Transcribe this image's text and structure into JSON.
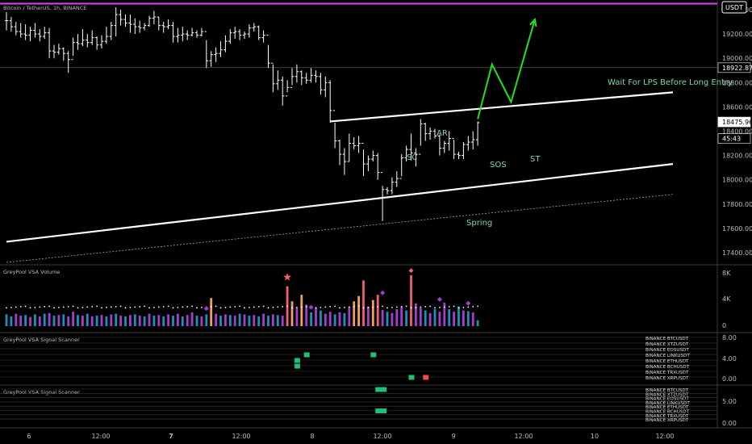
{
  "header": {
    "symbol_line": "Bitcoin / TetherUS, 1h, BINANCE",
    "currency_badge": "USDT"
  },
  "colors": {
    "background": "#000000",
    "candle": "#ffffff",
    "magenta_line": "#e040fb",
    "annotation_text": "#7ed9a8",
    "green_arrow": "#22e01a",
    "vol_blue": "#1f8fb8",
    "vol_purple": "#a23fd0",
    "vol_orange": "#f0a060",
    "vol_red": "#f06070",
    "scanner_green": "#1fbf75",
    "scanner_red": "#f04a5a"
  },
  "price_axis": {
    "ticks": [
      "19400.00",
      "19200.00",
      "19000.00",
      "18800.00",
      "18600.00",
      "18400.00",
      "18200.00",
      "18000.00",
      "17800.00",
      "17600.00",
      "17400.00"
    ],
    "label_price_1": "18922.87",
    "label_price_2": "18475.96",
    "label_countdown": "45:43"
  },
  "time_axis": {
    "ticks": [
      "6",
      "12:00",
      "7",
      "12:00",
      "8",
      "12:00",
      "9",
      "12:00",
      "10",
      "12:00"
    ]
  },
  "annotations": {
    "sc": "SC",
    "ar": "AR",
    "sos": "SOS",
    "st": "ST",
    "spring": "Spring",
    "note": "Wait For LPS Before Long Entry"
  },
  "panes": {
    "volume": {
      "title": "GreyPool VSA Volume",
      "ticks": [
        "8K",
        "4K",
        "0"
      ]
    },
    "scanner1": {
      "title": "GreyPool VSA Signal Scanner",
      "ticks": [
        "8.00",
        "4.00",
        "0.00"
      ],
      "symbols": [
        "BINANCE BTCUSDT",
        "BINANCE XTZUSDT",
        "BINANCE EOSUSDT",
        "BINANCE LINKUSDT",
        "BINANCE ETHUSDT",
        "BINANCE BCHUSDT",
        "BINANCE TRXUSDT",
        "BINANCE XRPUSDT"
      ]
    },
    "scanner2": {
      "title": "GreyPool VSA Signal Scanner",
      "ticks": [
        "5.00",
        "0.00"
      ],
      "symbols": [
        "BINANCE BTCUSDT",
        "BINANCE XTZUSDT",
        "BINANCE EOSUSDT",
        "BINANCE LINKUSDT",
        "BINANCE ETHUSDT",
        "BINANCE BCHUSDT",
        "BINANCE TRXUSDT",
        "BINANCE XRPUSDT"
      ]
    }
  },
  "chart_data": {
    "type": "candlestick",
    "title": "Bitcoin / TetherUS, 1h, BINANCE",
    "ylim": [
      17300,
      19480
    ],
    "x_ticks": [
      "6",
      "12:00",
      "7",
      "12:00",
      "8",
      "12:00",
      "9",
      "12:00",
      "10",
      "12:00"
    ],
    "candles_hlc": [
      [
        19380,
        19230,
        19310
      ],
      [
        19340,
        19220,
        19260
      ],
      [
        19300,
        19190,
        19220
      ],
      [
        19290,
        19170,
        19200
      ],
      [
        19280,
        19150,
        19190
      ],
      [
        19260,
        19140,
        19230
      ],
      [
        19290,
        19170,
        19200
      ],
      [
        19240,
        19140,
        19180
      ],
      [
        19260,
        19160,
        19210
      ],
      [
        19250,
        19000,
        19060
      ],
      [
        19110,
        19000,
        19050
      ],
      [
        19120,
        19030,
        19080
      ],
      [
        19090,
        18980,
        19040
      ],
      [
        19060,
        18880,
        18990
      ],
      [
        19170,
        19020,
        19130
      ],
      [
        19200,
        19070,
        19120
      ],
      [
        19240,
        19100,
        19150
      ],
      [
        19200,
        19090,
        19130
      ],
      [
        19230,
        19110,
        19170
      ],
      [
        19180,
        19070,
        19110
      ],
      [
        19190,
        19080,
        19140
      ],
      [
        19260,
        19120,
        19180
      ],
      [
        19300,
        19150,
        19270
      ],
      [
        19420,
        19180,
        19360
      ],
      [
        19400,
        19270,
        19320
      ],
      [
        19360,
        19260,
        19290
      ],
      [
        19360,
        19210,
        19280
      ],
      [
        19330,
        19200,
        19260
      ],
      [
        19310,
        19210,
        19250
      ],
      [
        19290,
        19230,
        19270
      ],
      [
        19350,
        19260,
        19330
      ],
      [
        19390,
        19280,
        19340
      ],
      [
        19340,
        19230,
        19270
      ],
      [
        19300,
        19210,
        19260
      ],
      [
        19320,
        19240,
        19270
      ],
      [
        19300,
        19130,
        19180
      ],
      [
        19250,
        19130,
        19190
      ],
      [
        19260,
        19140,
        19200
      ],
      [
        19230,
        19150,
        19190
      ],
      [
        19250,
        19180,
        19210
      ],
      [
        19230,
        19170,
        19190
      ],
      [
        19250,
        19180,
        19220
      ],
      [
        19150,
        18920,
        18980
      ],
      [
        19060,
        18930,
        19030
      ],
      [
        19090,
        18970,
        19040
      ],
      [
        19140,
        19010,
        19070
      ],
      [
        19190,
        19050,
        19140
      ],
      [
        19240,
        19120,
        19210
      ],
      [
        19260,
        19160,
        19220
      ],
      [
        19240,
        19150,
        19190
      ],
      [
        19220,
        19160,
        19200
      ],
      [
        19280,
        19170,
        19250
      ],
      [
        19290,
        19220,
        19260
      ],
      [
        19270,
        19150,
        19170
      ],
      [
        19230,
        19130,
        19190
      ],
      [
        19110,
        18920,
        18960
      ],
      [
        18950,
        18720,
        18790
      ],
      [
        18900,
        18740,
        18820
      ],
      [
        18850,
        18610,
        18690
      ],
      [
        18820,
        18720,
        18760
      ],
      [
        18920,
        18780,
        18850
      ],
      [
        18950,
        18800,
        18890
      ],
      [
        18900,
        18780,
        18840
      ],
      [
        18880,
        18790,
        18820
      ],
      [
        18920,
        18800,
        18860
      ],
      [
        18900,
        18800,
        18850
      ],
      [
        18880,
        18700,
        18740
      ],
      [
        18850,
        18680,
        18800
      ],
      [
        18820,
        18470,
        18570
      ],
      [
        18470,
        18260,
        18320
      ],
      [
        18330,
        18120,
        18210
      ],
      [
        18260,
        18040,
        18150
      ],
      [
        18380,
        18150,
        18300
      ],
      [
        18350,
        18250,
        18280
      ],
      [
        18360,
        18220,
        18300
      ],
      [
        18250,
        18030,
        18130
      ],
      [
        18200,
        18070,
        18170
      ],
      [
        18240,
        18150,
        18200
      ],
      [
        18220,
        18000,
        18060
      ],
      [
        17950,
        17660,
        17920
      ],
      [
        17940,
        17880,
        17910
      ],
      [
        18020,
        17880,
        17980
      ],
      [
        18070,
        17940,
        18010
      ],
      [
        18210,
        18030,
        18180
      ],
      [
        18280,
        18150,
        18250
      ],
      [
        18380,
        18160,
        18220
      ],
      [
        18260,
        18110,
        18210
      ],
      [
        18500,
        18280,
        18460
      ],
      [
        18470,
        18320,
        18380
      ],
      [
        18430,
        18330,
        18400
      ],
      [
        18420,
        18340,
        18360
      ],
      [
        18370,
        18200,
        18260
      ],
      [
        18320,
        18220,
        18300
      ],
      [
        18400,
        18240,
        18340
      ],
      [
        18330,
        18170,
        18210
      ],
      [
        18230,
        18170,
        18200
      ],
      [
        18310,
        18170,
        18290
      ],
      [
        18360,
        18240,
        18310
      ],
      [
        18400,
        18250,
        18330
      ],
      [
        18480,
        18280,
        18470
      ]
    ],
    "lines": [
      {
        "kind": "resistance",
        "from": [
          68,
          18480
        ],
        "to": [
          140,
          18720
        ]
      },
      {
        "kind": "support",
        "from": [
          0,
          17490
        ],
        "to": [
          140,
          18130
        ]
      },
      {
        "kind": "dotted",
        "from": [
          0,
          17320
        ],
        "to": [
          140,
          17880
        ]
      }
    ],
    "projection_arrow": [
      [
        99,
        18500
      ],
      [
        102,
        18950
      ],
      [
        106,
        18640
      ],
      [
        111,
        19320
      ]
    ],
    "magenta_level": 19450,
    "volume_bars": [
      [
        1800,
        "b"
      ],
      [
        1500,
        "b"
      ],
      [
        1900,
        "p"
      ],
      [
        1600,
        "p"
      ],
      [
        1700,
        "b"
      ],
      [
        1400,
        "p"
      ],
      [
        1800,
        "b"
      ],
      [
        1500,
        "p"
      ],
      [
        1900,
        "b"
      ],
      [
        2000,
        "p"
      ],
      [
        1600,
        "b"
      ],
      [
        1700,
        "p"
      ],
      [
        1800,
        "b"
      ],
      [
        1500,
        "p"
      ],
      [
        2200,
        "p"
      ],
      [
        1700,
        "b"
      ],
      [
        1600,
        "p"
      ],
      [
        1900,
        "b"
      ],
      [
        1500,
        "p"
      ],
      [
        1600,
        "b"
      ],
      [
        1700,
        "p"
      ],
      [
        1500,
        "b"
      ],
      [
        1800,
        "p"
      ],
      [
        1900,
        "b"
      ],
      [
        1600,
        "p"
      ],
      [
        1500,
        "b"
      ],
      [
        1700,
        "p"
      ],
      [
        1800,
        "b"
      ],
      [
        1600,
        "p"
      ],
      [
        1500,
        "b"
      ],
      [
        1900,
        "p"
      ],
      [
        1600,
        "b"
      ],
      [
        1700,
        "p"
      ],
      [
        1500,
        "b"
      ],
      [
        1800,
        "p"
      ],
      [
        1600,
        "b"
      ],
      [
        1900,
        "p"
      ],
      [
        1500,
        "b"
      ],
      [
        1700,
        "p"
      ],
      [
        2100,
        "p"
      ],
      [
        1600,
        "b"
      ],
      [
        1500,
        "p"
      ],
      [
        1800,
        "b"
      ],
      [
        4300,
        "o"
      ],
      [
        1900,
        "p"
      ],
      [
        1600,
        "b"
      ],
      [
        1800,
        "p"
      ],
      [
        1700,
        "b"
      ],
      [
        1600,
        "p"
      ],
      [
        1900,
        "b"
      ],
      [
        1800,
        "p"
      ],
      [
        1600,
        "b"
      ],
      [
        1700,
        "p"
      ],
      [
        1500,
        "b"
      ],
      [
        1900,
        "p"
      ],
      [
        1600,
        "b"
      ],
      [
        1800,
        "p"
      ],
      [
        1700,
        "b"
      ],
      [
        1600,
        "p"
      ],
      [
        6100,
        "r"
      ],
      [
        3800,
        "o"
      ],
      [
        2800,
        "p"
      ],
      [
        4800,
        "o"
      ],
      [
        3300,
        "p"
      ],
      [
        2100,
        "b"
      ],
      [
        2800,
        "p"
      ],
      [
        2400,
        "b"
      ],
      [
        1900,
        "p"
      ],
      [
        2200,
        "p"
      ],
      [
        1800,
        "b"
      ],
      [
        2100,
        "p"
      ],
      [
        2000,
        "b"
      ],
      [
        2900,
        "p"
      ],
      [
        3800,
        "o"
      ],
      [
        4600,
        "o"
      ],
      [
        7000,
        "r"
      ],
      [
        3000,
        "p"
      ],
      [
        4000,
        "o"
      ],
      [
        4800,
        "r"
      ],
      [
        2500,
        "p"
      ],
      [
        2200,
        "b"
      ],
      [
        2000,
        "p"
      ],
      [
        2600,
        "p"
      ],
      [
        3000,
        "p"
      ],
      [
        2400,
        "b"
      ],
      [
        7800,
        "r"
      ],
      [
        3500,
        "p"
      ],
      [
        2800,
        "p"
      ],
      [
        2400,
        "b"
      ],
      [
        2000,
        "p"
      ],
      [
        2600,
        "b"
      ],
      [
        2200,
        "p"
      ],
      [
        3600,
        "p"
      ],
      [
        2600,
        "b"
      ],
      [
        2200,
        "p"
      ],
      [
        3000,
        "b"
      ],
      [
        2400,
        "p"
      ],
      [
        2300,
        "b"
      ],
      [
        2100,
        "p"
      ],
      [
        900,
        "b"
      ]
    ],
    "volume_average": 3000,
    "volume_markers": [
      [
        59,
        "star",
        7000
      ],
      [
        42,
        "diamond",
        2200
      ],
      [
        79,
        "diamond",
        4600
      ],
      [
        85,
        "diamond",
        8000
      ],
      [
        64,
        "diamond",
        2400
      ],
      [
        91,
        "diamond",
        3600
      ],
      [
        97,
        "diamond",
        3000
      ]
    ],
    "scanner1_signals": [
      {
        "x": 61,
        "y": 3,
        "color": "green"
      },
      {
        "x": 61,
        "y": 2,
        "color": "green"
      },
      {
        "x": 63,
        "y": 4,
        "color": "green"
      },
      {
        "x": 77,
        "y": 4,
        "color": "green"
      },
      {
        "x": 85,
        "y": 0,
        "color": "green"
      },
      {
        "x": 88,
        "y": 0,
        "color": "red"
      }
    ],
    "scanner2_signals": [
      {
        "x": 78,
        "y": 7,
        "color": "green"
      },
      {
        "x": 78,
        "y": 2,
        "color": "green"
      }
    ]
  }
}
